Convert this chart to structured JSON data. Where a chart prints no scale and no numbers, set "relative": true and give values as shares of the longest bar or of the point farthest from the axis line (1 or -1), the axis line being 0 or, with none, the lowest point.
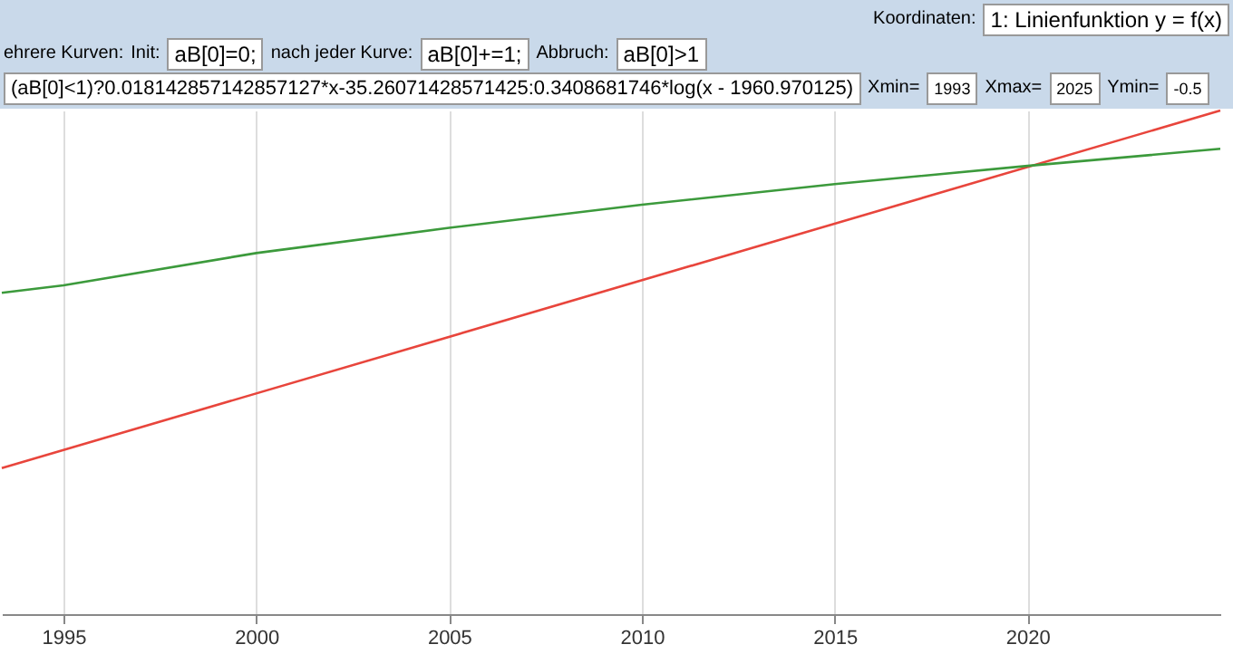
{
  "chart_data": {
    "type": "line",
    "relative": true,
    "x": [
      1993.4,
      1995,
      2000,
      2005,
      2010,
      2015,
      2020,
      2025
    ],
    "series": [
      {
        "color": "#e8453c",
        "x": [
          1993.4,
          2025
        ],
        "values": [
          0.29,
          1.0
        ]
      },
      {
        "color": "#3c9a3c",
        "values": [
          0.638,
          0.653,
          0.717,
          0.767,
          0.813,
          0.854,
          0.89,
          0.924
        ]
      }
    ],
    "xlim": [
      1993.4,
      2025
    ],
    "xticks": [
      1995,
      2000,
      2005,
      2010,
      2015,
      2020
    ],
    "grid": "x",
    "legend": false,
    "marker": "none",
    "line_style": "solid",
    "annotations": [
      "Koordinaten:",
      "1: Linienfunktion y = f(x)",
      "ehrere Kurven:",
      "Init:",
      "aB[0]=0;",
      "nach jeder Kurve:",
      "aB[0]+=1;",
      "Abbruch:",
      "aB[0]>1",
      "(aB[0]<1)?0.018142857142857127*x-35.26071428571425:0.3408681746*log(x - 1960.970125)",
      "Xmin=",
      "1993",
      "Xmax=",
      "2025",
      "Ymin=",
      "-0.5"
    ]
  }
}
